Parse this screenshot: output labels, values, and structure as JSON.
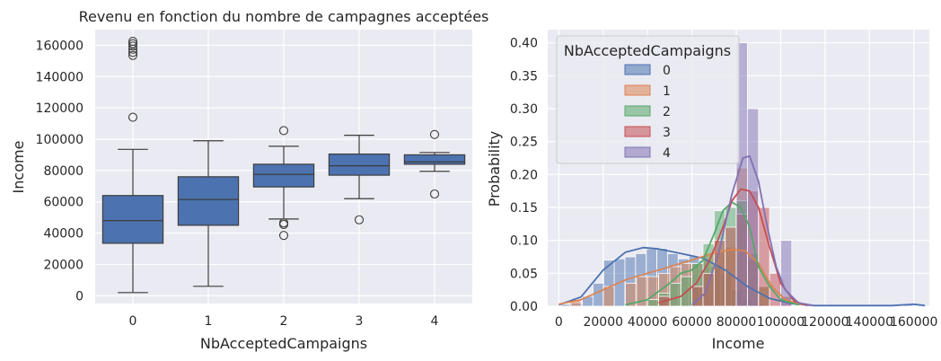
{
  "chart_data": [
    {
      "type": "box",
      "title": "Revenu en fonction du nombre de campagnes acceptées",
      "xlabel": "NbAcceptedCampaigns",
      "ylabel": "Income",
      "categories": [
        "0",
        "1",
        "2",
        "3",
        "4"
      ],
      "ylim": [
        -5000,
        170000
      ],
      "yticks": [
        0,
        20000,
        40000,
        60000,
        80000,
        100000,
        120000,
        140000,
        160000
      ],
      "color": "#4c72b0",
      "boxes": [
        {
          "category": "0",
          "q1": 33500,
          "median": 48000,
          "q3": 64000,
          "whislo": 2000,
          "whishi": 93500,
          "fliers": [
            114000,
            153500,
            155500,
            157500,
            159500,
            161000,
            162500
          ]
        },
        {
          "category": "1",
          "q1": 45000,
          "median": 61500,
          "q3": 76000,
          "whislo": 6000,
          "whishi": 99000,
          "fliers": []
        },
        {
          "category": "2",
          "q1": 69500,
          "median": 77500,
          "q3": 84000,
          "whislo": 49000,
          "whishi": 95500,
          "fliers": [
            105500,
            46500,
            45500,
            38500
          ]
        },
        {
          "category": "3",
          "q1": 77000,
          "median": 83000,
          "q3": 90500,
          "whislo": 62000,
          "whishi": 102500,
          "fliers": [
            48500
          ]
        },
        {
          "category": "4",
          "q1": 84000,
          "median": 85500,
          "q3": 90000,
          "whislo": 79500,
          "whishi": 91500,
          "fliers": [
            103000,
            65000
          ]
        }
      ]
    },
    {
      "type": "histogram",
      "xlabel": "Income",
      "ylabel": "Probability",
      "xlim": [
        -5000,
        167000
      ],
      "ylim": [
        0,
        0.42
      ],
      "xticks": [
        0,
        20000,
        40000,
        60000,
        80000,
        100000,
        120000,
        140000,
        160000
      ],
      "yticks": [
        0.0,
        0.05,
        0.1,
        0.15,
        0.2,
        0.25,
        0.3,
        0.35,
        0.4
      ],
      "legend": {
        "title": "NbAcceptedCampaigns",
        "position": "upper-left"
      },
      "series": [
        {
          "name": "0",
          "color": "#4c72b0",
          "bins": [
            [
              1000,
              5800,
              0.003
            ],
            [
              5800,
              10600,
              0.005
            ],
            [
              10600,
              15400,
              0.015
            ],
            [
              15400,
              20200,
              0.035
            ],
            [
              20200,
              25000,
              0.07
            ],
            [
              25000,
              29800,
              0.072
            ],
            [
              29800,
              34600,
              0.075
            ],
            [
              34600,
              39400,
              0.08
            ],
            [
              39400,
              44200,
              0.087
            ],
            [
              44200,
              49000,
              0.088
            ],
            [
              49000,
              53800,
              0.08
            ],
            [
              53800,
              58600,
              0.072
            ],
            [
              58600,
              63400,
              0.076
            ],
            [
              63400,
              68200,
              0.07
            ],
            [
              68200,
              73000,
              0.06
            ],
            [
              73000,
              77800,
              0.05
            ],
            [
              77800,
              82600,
              0.025
            ],
            [
              82600,
              87400,
              0.01
            ],
            [
              87400,
              92200,
              0.004
            ],
            [
              155000,
              159800,
              0.002
            ]
          ],
          "kde": [
            [
              0,
              0.002
            ],
            [
              10000,
              0.014
            ],
            [
              20000,
              0.055
            ],
            [
              30000,
              0.082
            ],
            [
              38000,
              0.089
            ],
            [
              45000,
              0.087
            ],
            [
              55000,
              0.08
            ],
            [
              65000,
              0.073
            ],
            [
              75000,
              0.055
            ],
            [
              85000,
              0.03
            ],
            [
              95000,
              0.012
            ],
            [
              105000,
              0.004
            ],
            [
              115000,
              0.001
            ],
            [
              150000,
              0.001
            ],
            [
              160000,
              0.003
            ],
            [
              165000,
              0.001
            ]
          ]
        },
        {
          "name": "1",
          "color": "#dd8452",
          "bins": [
            [
              5000,
              10000,
              0.01
            ],
            [
              20000,
              25000,
              0.03
            ],
            [
              30000,
              35000,
              0.035
            ],
            [
              35000,
              40000,
              0.045
            ],
            [
              40000,
              45000,
              0.045
            ],
            [
              45000,
              50000,
              0.05
            ],
            [
              50000,
              55000,
              0.06
            ],
            [
              55000,
              60000,
              0.065
            ],
            [
              60000,
              65000,
              0.065
            ],
            [
              65000,
              70000,
              0.08
            ],
            [
              70000,
              75000,
              0.085
            ],
            [
              75000,
              80000,
              0.09
            ],
            [
              80000,
              85000,
              0.21
            ],
            [
              85000,
              90000,
              0.07
            ],
            [
              90000,
              95000,
              0.03
            ]
          ],
          "kde": [
            [
              0,
              0.003
            ],
            [
              10000,
              0.01
            ],
            [
              20000,
              0.025
            ],
            [
              30000,
              0.04
            ],
            [
              40000,
              0.05
            ],
            [
              50000,
              0.06
            ],
            [
              60000,
              0.07
            ],
            [
              70000,
              0.081
            ],
            [
              78000,
              0.086
            ],
            [
              84000,
              0.084
            ],
            [
              90000,
              0.065
            ],
            [
              96000,
              0.03
            ],
            [
              102000,
              0.01
            ],
            [
              110000,
              0.002
            ]
          ]
        },
        {
          "name": "2",
          "color": "#55a868",
          "bins": [
            [
              40000,
              45000,
              0.01
            ],
            [
              45000,
              50000,
              0.02
            ],
            [
              50000,
              55000,
              0.035
            ],
            [
              55000,
              60000,
              0.045
            ],
            [
              60000,
              65000,
              0.065
            ],
            [
              65000,
              70000,
              0.095
            ],
            [
              70000,
              75000,
              0.145
            ],
            [
              75000,
              80000,
              0.15
            ],
            [
              80000,
              85000,
              0.16
            ],
            [
              85000,
              90000,
              0.08
            ],
            [
              90000,
              95000,
              0.03
            ]
          ],
          "kde": [
            [
              30000,
              0.002
            ],
            [
              40000,
              0.01
            ],
            [
              50000,
              0.035
            ],
            [
              55000,
              0.05
            ],
            [
              60000,
              0.055
            ],
            [
              65000,
              0.07
            ],
            [
              70000,
              0.11
            ],
            [
              74000,
              0.145
            ],
            [
              78000,
              0.158
            ],
            [
              82000,
              0.15
            ],
            [
              86000,
              0.12
            ],
            [
              90000,
              0.06
            ],
            [
              95000,
              0.03
            ],
            [
              100000,
              0.01
            ],
            [
              108000,
              0.002
            ]
          ]
        },
        {
          "name": "3",
          "color": "#c44e52",
          "bins": [
            [
              45000,
              50000,
              0.015
            ],
            [
              60000,
              65000,
              0.03
            ],
            [
              65000,
              70000,
              0.05
            ],
            [
              70000,
              75000,
              0.1
            ],
            [
              75000,
              80000,
              0.12
            ],
            [
              80000,
              85000,
              0.14
            ],
            [
              85000,
              90000,
              0.175
            ],
            [
              90000,
              95000,
              0.15
            ],
            [
              95000,
              100000,
              0.05
            ],
            [
              100000,
              105000,
              0.015
            ]
          ],
          "kde": [
            [
              45000,
              0.005
            ],
            [
              55000,
              0.015
            ],
            [
              62000,
              0.035
            ],
            [
              68000,
              0.07
            ],
            [
              74000,
              0.12
            ],
            [
              78000,
              0.16
            ],
            [
              82000,
              0.178
            ],
            [
              86000,
              0.175
            ],
            [
              90000,
              0.15
            ],
            [
              95000,
              0.09
            ],
            [
              100000,
              0.035
            ],
            [
              106000,
              0.008
            ],
            [
              112000,
              0.001
            ]
          ]
        },
        {
          "name": "4",
          "color": "#8172b3",
          "bins": [
            [
              80000,
              85000,
              0.4
            ],
            [
              85000,
              90000,
              0.3
            ],
            [
              90000,
              95000,
              0.0
            ],
            [
              100000,
              105000,
              0.1
            ],
            [
              60000,
              65000,
              0.0
            ]
          ],
          "kde": [
            [
              60000,
              0.002
            ],
            [
              66000,
              0.02
            ],
            [
              72000,
              0.08
            ],
            [
              78000,
              0.17
            ],
            [
              83000,
              0.225
            ],
            [
              86000,
              0.228
            ],
            [
              90000,
              0.19
            ],
            [
              94000,
              0.12
            ],
            [
              98000,
              0.06
            ],
            [
              102000,
              0.025
            ],
            [
              108000,
              0.005
            ],
            [
              115000,
              0.001
            ]
          ]
        }
      ]
    }
  ]
}
